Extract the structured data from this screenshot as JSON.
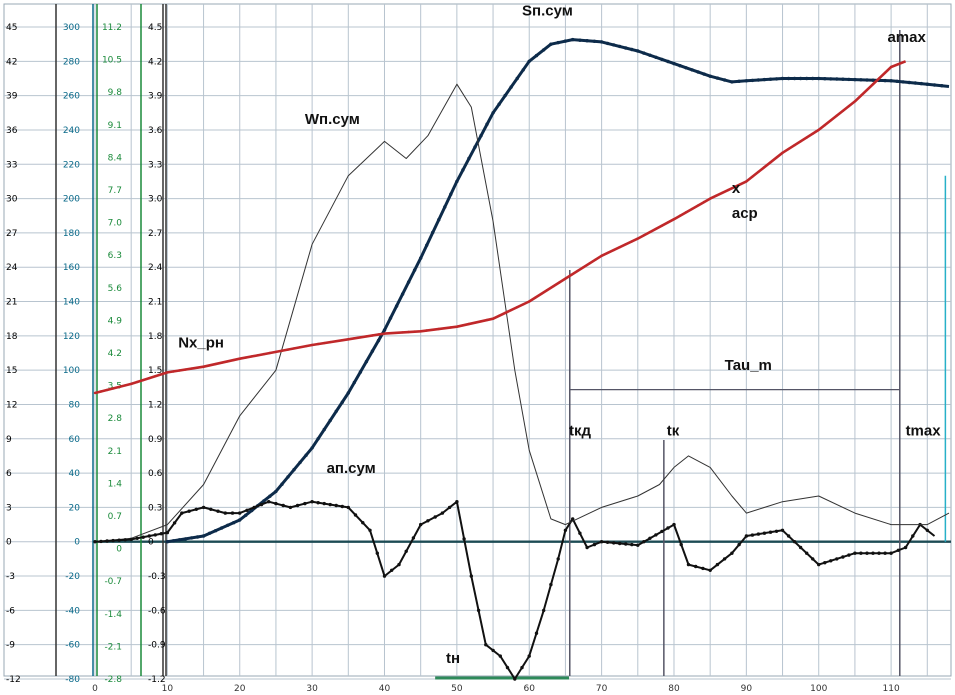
{
  "chart_data": {
    "type": "line",
    "x_ticks": [
      0,
      10,
      20,
      30,
      40,
      50,
      60,
      70,
      80,
      90,
      100,
      110
    ],
    "xlim": [
      -1,
      118
    ],
    "y_axes": [
      {
        "ylim": [
          -12,
          45
        ],
        "ticks": [
          "-12",
          "-9",
          "-6",
          "-3",
          "0",
          "3",
          "6",
          "9",
          "12",
          "15",
          "18",
          "21",
          "24",
          "27",
          "30",
          "33",
          "36",
          "39",
          "42",
          "45"
        ],
        "color": "#000000"
      },
      {
        "ticks": [
          "-80",
          "-60",
          "-40",
          "-20",
          "0",
          "20",
          "40",
          "60",
          "80",
          "100",
          "120",
          "140",
          "160",
          "180",
          "200",
          "220",
          "240",
          "260",
          "280",
          "300"
        ],
        "color": "#0a6a8a"
      },
      {
        "ticks": [
          "-2.8",
          "-2.1",
          "-1.4",
          "-0.7",
          "0",
          "0.7",
          "1.4",
          "2.1",
          "2.8",
          "3.5",
          "4.2",
          "4.9",
          "5.6",
          "6.3",
          "7.0",
          "7.7",
          "8.4",
          "9.1",
          "9.8",
          "10.5",
          "11.2"
        ],
        "color": "#1a8a3a"
      },
      {
        "ticks": [
          "-1.2",
          "-0.9",
          "-0.6",
          "-0.3",
          "0",
          "0.3",
          "0.6",
          "0.9",
          "1.2",
          "1.5",
          "1.8",
          "2.1",
          "2.4",
          "2.7",
          "3.0",
          "3.3",
          "3.6",
          "3.9",
          "4.2",
          "4.5"
        ],
        "color": "#000000"
      }
    ],
    "series": [
      {
        "name": "Sп.сум",
        "color": "#0d2b4a",
        "x": [
          10,
          15,
          20,
          25,
          30,
          35,
          40,
          45,
          50,
          55,
          60,
          63,
          66,
          70,
          75,
          80,
          85,
          88,
          90,
          95,
          100,
          105,
          110,
          115,
          118
        ],
        "y": [
          0,
          0.5,
          1.9,
          4.4,
          8.2,
          13,
          18.5,
          24.8,
          31.5,
          37.5,
          42,
          43.5,
          43.9,
          43.7,
          42.9,
          41.8,
          40.7,
          40.2,
          40.3,
          40.5,
          40.5,
          40.4,
          40.3,
          40.0,
          39.8
        ]
      },
      {
        "name": "Wп.сум",
        "color": "#333333",
        "x": [
          0,
          5,
          10,
          15,
          20,
          25,
          30,
          35,
          40,
          43,
          46,
          50,
          52,
          55,
          58,
          60,
          63,
          65
        ],
        "y": [
          0,
          0.3,
          1.5,
          5,
          11,
          15,
          26,
          32,
          35,
          33.5,
          35.5,
          40,
          38,
          28,
          15,
          8,
          2,
          1.5
        ]
      },
      {
        "name": "Nx_рн",
        "color": "#c0282a",
        "x": [
          0,
          5,
          10,
          15,
          20,
          25,
          30,
          35,
          40,
          45,
          50,
          55,
          60,
          65,
          70,
          75,
          80,
          85,
          90,
          95,
          100,
          105,
          110,
          112
        ],
        "y": [
          13,
          13.8,
          14.8,
          15.3,
          16,
          16.6,
          17.2,
          17.7,
          18.2,
          18.4,
          18.8,
          19.5,
          21,
          23,
          25,
          26.5,
          28.2,
          30,
          31.5,
          34,
          36,
          38.5,
          41.5,
          42
        ]
      },
      {
        "name": "ап.сум",
        "color": "#111111",
        "x": [
          0,
          5,
          10,
          12,
          15,
          18,
          20,
          24,
          27,
          30,
          35,
          38,
          40,
          42,
          45,
          48,
          50,
          52,
          54,
          56,
          58,
          60,
          62,
          64,
          65,
          66,
          68,
          70,
          75,
          80,
          82,
          85,
          88,
          90,
          95,
          100,
          105,
          110,
          112,
          114,
          116
        ],
        "y": [
          0,
          0.2,
          0.8,
          2.5,
          3,
          2.5,
          2.5,
          3.5,
          3,
          3.5,
          3,
          1,
          -3,
          -2,
          1.5,
          2.5,
          3.5,
          -3,
          -9,
          -10,
          -12,
          -10,
          -6,
          -1.5,
          1,
          2,
          -0.5,
          0,
          -0.3,
          1.5,
          -2,
          -2.5,
          -1,
          0.5,
          1,
          -2,
          -1,
          -1,
          -0.5,
          1.5,
          0.5
        ]
      },
      {
        "name": "",
        "color": "#333333",
        "x": [
          65,
          70,
          75,
          78,
          80,
          82,
          85,
          88,
          90,
          95,
          100,
          105,
          110,
          115,
          118
        ],
        "y": [
          1.5,
          3,
          4,
          5,
          6.5,
          7.5,
          6.5,
          4,
          2.5,
          3.5,
          4,
          2.5,
          1.5,
          1.5,
          2.5
        ]
      }
    ],
    "annotations": [
      {
        "text": "Sп.сум",
        "x": 59,
        "y": 46
      },
      {
        "text": "Wп.сум",
        "x": 29,
        "y": 36.5
      },
      {
        "text": "Nx_рн",
        "x": 11.5,
        "y": 17
      },
      {
        "text": "ап.сум",
        "x": 32,
        "y": 6
      },
      {
        "text": "amax",
        "x": 109.5,
        "y": 43.7
      },
      {
        "text": "x",
        "x": 88,
        "y": 30.5
      },
      {
        "text": "acp",
        "x": 88,
        "y": 28.3
      },
      {
        "text": "Tau_m",
        "x": 87,
        "y": 15
      },
      {
        "text": "tкд",
        "x": 65.5,
        "y": 9.3
      },
      {
        "text": "tк",
        "x": 79,
        "y": 9.3
      },
      {
        "text": "tmax",
        "x": 112,
        "y": 9.3
      },
      {
        "text": "tн",
        "x": 48.5,
        "y": -10.6
      }
    ]
  }
}
